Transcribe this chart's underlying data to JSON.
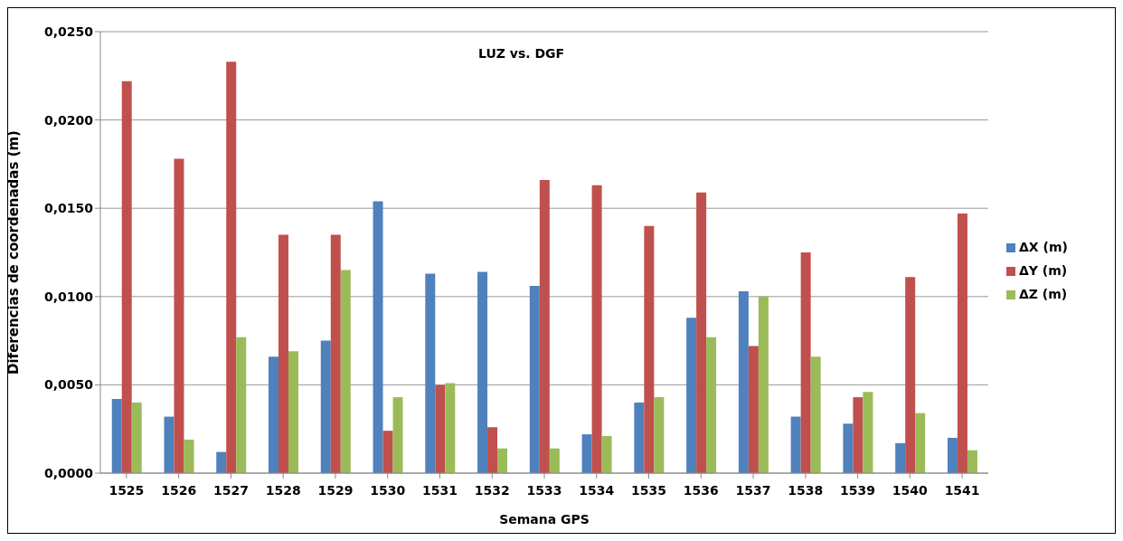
{
  "chart_data": {
    "type": "bar",
    "title": "LUZ vs. DGF",
    "xlabel": "Semana GPS",
    "ylabel": "Diferencias de coordenadas (m)",
    "categories": [
      "1525",
      "1526",
      "1527",
      "1528",
      "1529",
      "1530",
      "1531",
      "1532",
      "1533",
      "1534",
      "1535",
      "1536",
      "1537",
      "1538",
      "1539",
      "1540",
      "1541"
    ],
    "series": [
      {
        "name": "ΔX (m)",
        "color": "#4f81bd",
        "values": [
          0.0042,
          0.0032,
          0.0012,
          0.0066,
          0.0075,
          0.0154,
          0.0113,
          0.0114,
          0.0106,
          0.0022,
          0.004,
          0.0088,
          0.0103,
          0.0032,
          0.0028,
          0.0017,
          0.002
        ]
      },
      {
        "name": "ΔY (m)",
        "color": "#c0504d",
        "values": [
          0.0222,
          0.0178,
          0.0233,
          0.0135,
          0.0135,
          0.0024,
          0.005,
          0.0026,
          0.0166,
          0.0163,
          0.014,
          0.0159,
          0.0072,
          0.0125,
          0.0043,
          0.0111,
          0.0147
        ]
      },
      {
        "name": "ΔZ (m)",
        "color": "#9bbb59",
        "values": [
          0.004,
          0.0019,
          0.0077,
          0.0069,
          0.0115,
          0.0043,
          0.0051,
          0.0014,
          0.0014,
          0.0021,
          0.0043,
          0.0077,
          0.01,
          0.0066,
          0.0046,
          0.0034,
          0.0013
        ]
      }
    ],
    "ylim": [
      0,
      0.025
    ],
    "yticks": [
      {
        "value": 0,
        "label": "0,0000"
      },
      {
        "value": 0.005,
        "label": "0,0050"
      },
      {
        "value": 0.01,
        "label": "0,0100"
      },
      {
        "value": 0.015,
        "label": "0,0150"
      },
      {
        "value": 0.02,
        "label": "0,0200"
      },
      {
        "value": 0.025,
        "label": "0,0250"
      }
    ],
    "grid": "y",
    "legend": "right"
  }
}
